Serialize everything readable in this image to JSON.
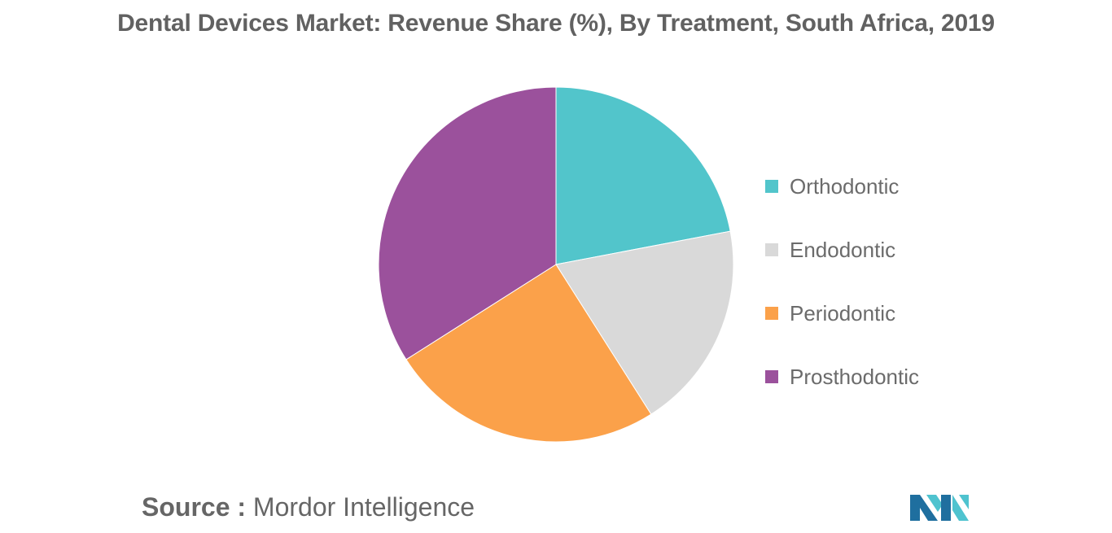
{
  "chart_data": {
    "type": "pie",
    "title": "Dental Devices Market: Revenue Share (%), By Treatment, South Africa, 2019",
    "categories": [
      "Orthodontic",
      "Endodontic",
      "Periodontic",
      "Prosthodontic"
    ],
    "values": [
      22,
      19,
      25,
      34
    ],
    "colors": [
      "#52c5cb",
      "#d9d9d9",
      "#fba14a",
      "#9b519c"
    ],
    "legend_position": "right"
  },
  "source": {
    "label": "Source :",
    "text": "Mordor Intelligence"
  },
  "logo": {
    "icon": "mordor-intelligence-logo",
    "colors": [
      "#1f6f9f",
      "#4fc3cf"
    ]
  }
}
